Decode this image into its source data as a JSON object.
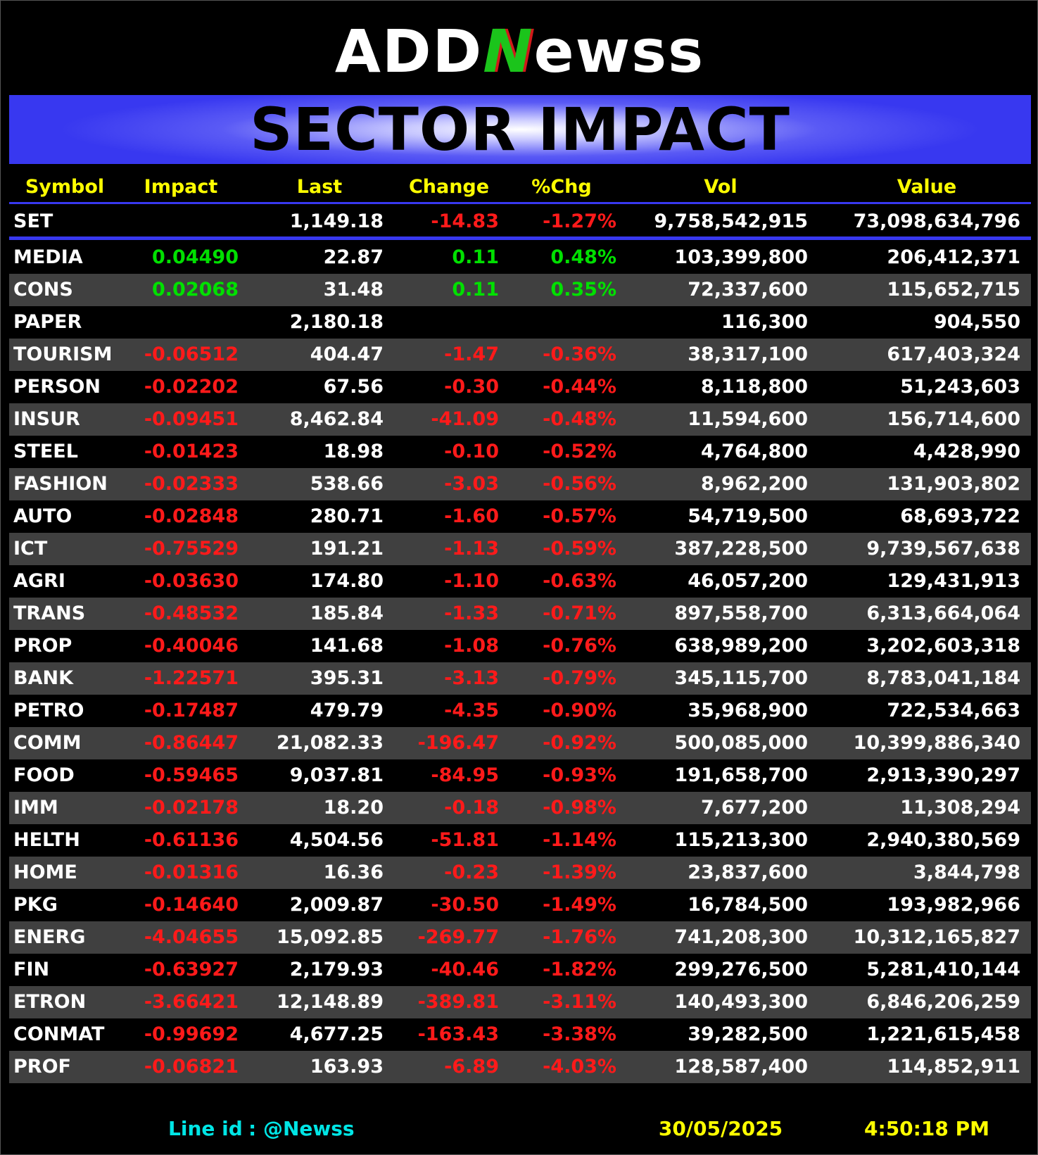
{
  "logo": [
    "ADD",
    "N",
    "ewss"
  ],
  "title": "SECTOR IMPACT",
  "table": {
    "header": [
      "Symbol",
      "Impact",
      "Last",
      "Change",
      "%Chg",
      "Vol",
      "Value"
    ],
    "index_row": [
      "SET",
      null,
      "1,149.18",
      "-14.83",
      "-1.27%",
      "9,758,542,915",
      "73,098,634,796"
    ],
    "rows": [
      [
        "MEDIA",
        "0.04490",
        "22.87",
        "0.11",
        "0.48%",
        "103,399,800",
        "206,412,371"
      ],
      [
        "CONS",
        "0.02068",
        "31.48",
        "0.11",
        "0.35%",
        "72,337,600",
        "115,652,715"
      ],
      [
        "PAPER",
        null,
        "2,180.18",
        null,
        null,
        "116,300",
        "904,550"
      ],
      [
        "TOURISM",
        "-0.06512",
        "404.47",
        "-1.47",
        "-0.36%",
        "38,317,100",
        "617,403,324"
      ],
      [
        "PERSON",
        "-0.02202",
        "67.56",
        "-0.30",
        "-0.44%",
        "8,118,800",
        "51,243,603"
      ],
      [
        "INSUR",
        "-0.09451",
        "8,462.84",
        "-41.09",
        "-0.48%",
        "11,594,600",
        "156,714,600"
      ],
      [
        "STEEL",
        "-0.01423",
        "18.98",
        "-0.10",
        "-0.52%",
        "4,764,800",
        "4,428,990"
      ],
      [
        "FASHION",
        "-0.02333",
        "538.66",
        "-3.03",
        "-0.56%",
        "8,962,200",
        "131,903,802"
      ],
      [
        "AUTO",
        "-0.02848",
        "280.71",
        "-1.60",
        "-0.57%",
        "54,719,500",
        "68,693,722"
      ],
      [
        "ICT",
        "-0.75529",
        "191.21",
        "-1.13",
        "-0.59%",
        "387,228,500",
        "9,739,567,638"
      ],
      [
        "AGRI",
        "-0.03630",
        "174.80",
        "-1.10",
        "-0.63%",
        "46,057,200",
        "129,431,913"
      ],
      [
        "TRANS",
        "-0.48532",
        "185.84",
        "-1.33",
        "-0.71%",
        "897,558,700",
        "6,313,664,064"
      ],
      [
        "PROP",
        "-0.40046",
        "141.68",
        "-1.08",
        "-0.76%",
        "638,989,200",
        "3,202,603,318"
      ],
      [
        "BANK",
        "-1.22571",
        "395.31",
        "-3.13",
        "-0.79%",
        "345,115,700",
        "8,783,041,184"
      ],
      [
        "PETRO",
        "-0.17487",
        "479.79",
        "-4.35",
        "-0.90%",
        "35,968,900",
        "722,534,663"
      ],
      [
        "COMM",
        "-0.86447",
        "21,082.33",
        "-196.47",
        "-0.92%",
        "500,085,000",
        "10,399,886,340"
      ],
      [
        "FOOD",
        "-0.59465",
        "9,037.81",
        "-84.95",
        "-0.93%",
        "191,658,700",
        "2,913,390,297"
      ],
      [
        "IMM",
        "-0.02178",
        "18.20",
        "-0.18",
        "-0.98%",
        "7,677,200",
        "11,308,294"
      ],
      [
        "HELTH",
        "-0.61136",
        "4,504.56",
        "-51.81",
        "-1.14%",
        "115,213,300",
        "2,940,380,569"
      ],
      [
        "HOME",
        "-0.01316",
        "16.36",
        "-0.23",
        "-1.39%",
        "23,837,600",
        "3,844,798"
      ],
      [
        "PKG",
        "-0.14640",
        "2,009.87",
        "-30.50",
        "-1.49%",
        "16,784,500",
        "193,982,966"
      ],
      [
        "ENERG",
        "-4.04655",
        "15,092.85",
        "-269.77",
        "-1.76%",
        "741,208,300",
        "10,312,165,827"
      ],
      [
        "FIN",
        "-0.63927",
        "2,179.93",
        "-40.46",
        "-1.82%",
        "299,276,500",
        "5,281,410,144"
      ],
      [
        "ETRON",
        "-3.66421",
        "12,148.89",
        "-389.81",
        "-3.11%",
        "140,493,300",
        "6,846,206,259"
      ],
      [
        "CONMAT",
        "-0.99692",
        "4,677.25",
        "-163.43",
        "-3.38%",
        "39,282,500",
        "1,221,615,458"
      ],
      [
        "PROF",
        "-0.06821",
        "163.93",
        "-6.89",
        "-4.03%",
        "128,587,400",
        "114,852,911"
      ]
    ]
  },
  "footer": {
    "line_label": "Line id",
    "line_id": ": @Newss",
    "date": "30/05/2025",
    "time": "4:50:18 PM"
  }
}
